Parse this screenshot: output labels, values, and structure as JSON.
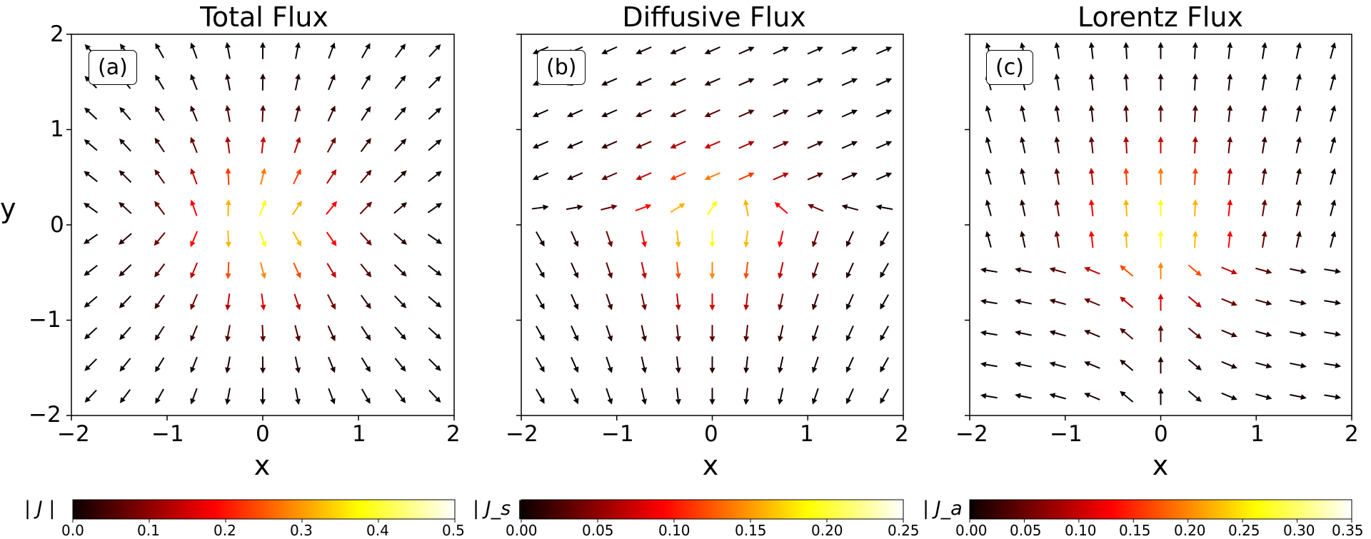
{
  "chart_data": [
    {
      "type": "quiver",
      "title": "Total Flux",
      "xlabel": "x",
      "ylabel": "y",
      "xlim": [
        -2,
        2
      ],
      "ylim": [
        -2,
        2
      ],
      "xticks": [
        "−2",
        "−1",
        "0",
        "1",
        "2"
      ],
      "yticks": [
        "−2",
        "−1",
        "0",
        "1",
        "2"
      ],
      "panel_label": "(a)",
      "field": "total",
      "colormap": "hot",
      "colorbar": {
        "label": "| J |",
        "range": [
          0.0,
          0.5
        ],
        "ticks": [
          "0.0",
          "0.1",
          "0.2",
          "0.3",
          "0.4",
          "0.5"
        ]
      }
    },
    {
      "type": "quiver",
      "title": "Diffusive Flux",
      "xlabel": "x",
      "xlim": [
        -2,
        2
      ],
      "ylim": [
        -2,
        2
      ],
      "xticks": [
        "−2",
        "−1",
        "0",
        "1",
        "2"
      ],
      "panel_label": "(b)",
      "field": "diffusive",
      "colormap": "hot",
      "colorbar": {
        "label": "| J_s |",
        "range": [
          0.0,
          0.25
        ],
        "ticks": [
          "0.00",
          "0.05",
          "0.10",
          "0.15",
          "0.20",
          "0.25"
        ]
      }
    },
    {
      "type": "quiver",
      "title": "Lorentz Flux",
      "xlabel": "x",
      "xlim": [
        -2,
        2
      ],
      "ylim": [
        -2,
        2
      ],
      "xticks": [
        "−2",
        "−1",
        "0",
        "1",
        "2"
      ],
      "panel_label": "(c)",
      "field": "lorentz",
      "colormap": "hot",
      "colorbar": {
        "label": "| J_a |",
        "range": [
          0.0,
          0.35
        ],
        "ticks": [
          "0.00",
          "0.05",
          "0.10",
          "0.15",
          "0.20",
          "0.25",
          "0.30",
          "0.35"
        ]
      }
    }
  ]
}
